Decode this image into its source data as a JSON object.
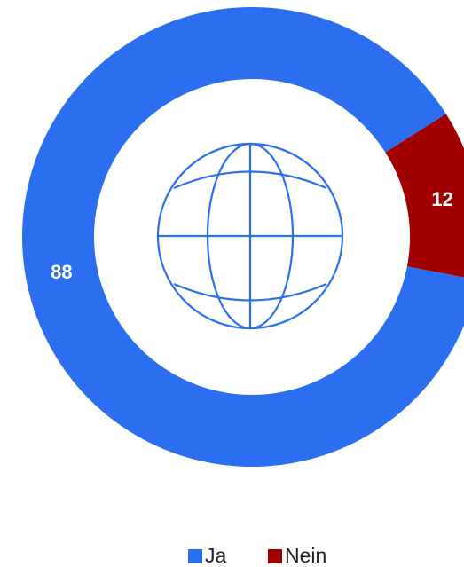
{
  "chart_data": {
    "type": "donut",
    "categories": [
      "Ja",
      "Nein"
    ],
    "values": [
      88,
      12
    ],
    "colors": [
      "#2b6ff0",
      "#a10000"
    ],
    "legend": "bottom"
  }
}
